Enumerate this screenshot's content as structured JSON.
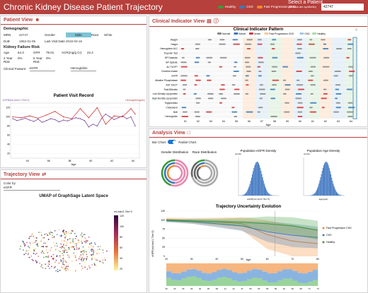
{
  "app": {
    "title": "Chronic Kidney Disease Patient Trajectory",
    "select_label": "Select a Patient",
    "select_note": "(All data are synthetic)",
    "patient_id": "42747"
  },
  "legend": [
    {
      "label": "Healthy",
      "color": "#3a9a3a"
    },
    {
      "label": "CKD",
      "color": "#3a7ab7"
    },
    {
      "label": "Fast Progression CKD",
      "color": "#f08a2c"
    }
  ],
  "patient_view": {
    "title": "Patient View",
    "demographic": "Demographic",
    "mrn_label": "MRN",
    "mrn": "42747",
    "gender_label": "Gender",
    "gender": "Male",
    "race_label": "Race",
    "race": "White",
    "dob_label": "DoB",
    "dob": "1952-01-05",
    "lastvisit_label": "Last Visit Date",
    "lastvisit": "2016-03-16",
    "risk_title": "Kidney Failure Risk",
    "age_label": "Age",
    "age": "64.3",
    "gfr_label": "GFR",
    "gfr": "79.01",
    "acr_label": "ACR(mg/g Cr)",
    "acr": "22.2",
    "risk2_label": "2 Year Risk",
    "risk2": "0%",
    "risk5_label": "5 Year Risk",
    "risk5": "0%",
    "clinical_label": "Clinical Feature:",
    "clinical_value": "eGFR",
    "second_value": "Hemoglobin",
    "chart_title": "Patient Visit Record",
    "y_left": "eGFR(mL/min/1.73m^2)",
    "y_right": "Hemoglobin(g/dL)",
    "xlabel": "Age"
  },
  "trajectory_view": {
    "title": "Trajectory View",
    "colorby": "Color by:",
    "colorby_value": "eGFR",
    "umap_title": "UMAP of GraphSage Latent Space",
    "cb_label": "mL/min/1.73m^2",
    "cb_ticks": [
      "120",
      "100",
      "80",
      "60",
      "40",
      "20"
    ]
  },
  "clinical_view": {
    "title": "Clinical Indicator View",
    "chart_title": "Clinical Indicator Pattern",
    "legend": [
      "Normal",
      "Above",
      "Under",
      "Fast Progression CKD",
      "CKD",
      "Healthy"
    ],
    "rows": [
      "Weight",
      "Height",
      "Hemoglobin A1C",
      "Troponin Test",
      "BP Diastolic",
      "BP Systolic",
      "ALT SGPT",
      "Creatine kinase",
      "eGFR",
      "Alkaline Phosphatase",
      "AST SGOT",
      "Total Bilirubin",
      "Low-Density Lipoprotein",
      "High-Density Lipoprotein",
      "Triglycerides",
      "Cholesterol",
      "BMI",
      "Hemoglobin"
    ],
    "xticks": [
      "51",
      "52",
      "53",
      "54",
      "55",
      "56",
      "57",
      "58",
      "59",
      "60",
      "61",
      "62",
      "63",
      "64"
    ],
    "xlabel": "Age"
  },
  "analysis_view": {
    "title": "Analysis View",
    "bar": "Bar Chart",
    "radial": "Radial Chart",
    "gender": "Gender Distribution",
    "race": "Race Distribution",
    "egfr_density": "Population eGFR Density",
    "egfr_x": "eGFR(mL/min/1.73m^2)",
    "age_density": "Population Age Density",
    "age_x": "age(year)",
    "density_y": "counts",
    "uncert_title": "Trajectory Uncertainty Evolution",
    "uncert_y": "eGFR(mL/min/1.73m^2)",
    "uncert_x": "Age",
    "uncert_legend": [
      "Fast Progression CKD",
      "CKD",
      "Healthy"
    ]
  },
  "chart_data": [
    {
      "type": "line",
      "title": "Patient Visit Record",
      "xlabel": "Age",
      "x_ticks": [
        "54",
        "56",
        "58",
        "60",
        "62",
        "64"
      ],
      "y_ticks": [
        "20",
        "40",
        "60",
        "80",
        "100",
        "120"
      ],
      "series": [
        {
          "name": "eGFR(mL/min/1.73m^2)",
          "x": [
            52.6,
            53,
            53.4,
            53.8,
            54.2,
            54.6,
            55,
            55.4,
            55.8,
            56.2,
            56.6,
            57,
            57.4,
            57.8,
            58.2,
            58.6,
            59,
            59.4,
            59.8,
            60.2,
            60.6,
            61,
            61.4,
            61.8,
            62.2,
            62.6,
            63,
            63.4,
            63.8,
            64.2
          ],
          "values": [
            96,
            92,
            94,
            97,
            93,
            90,
            95,
            88,
            92,
            96,
            94,
            89,
            93,
            91,
            95,
            98,
            96,
            92,
            78,
            84,
            80,
            96,
            106,
            100,
            94,
            98,
            102,
            96,
            100,
            80
          ]
        },
        {
          "name": "Hemoglobin(g/dL)",
          "x": [
            52.6,
            53.4,
            54.2,
            55,
            55.8,
            56.6,
            57.4,
            58.2,
            59,
            59.8,
            60.6,
            61.4,
            62.2,
            63,
            63.8,
            64.2
          ],
          "values": [
            100,
            98,
            102,
            97,
            104,
            112,
            100,
            96,
            118,
            98,
            120,
            84,
            102,
            100,
            118,
            106
          ]
        }
      ]
    },
    {
      "type": "line",
      "title": "Trajectory Uncertainty Evolution",
      "xlabel": "Age",
      "x": [
        20,
        30,
        40,
        50,
        60,
        70,
        80
      ],
      "y_ticks": [
        "0",
        "25",
        "50",
        "75",
        "100",
        "125"
      ],
      "series": [
        {
          "name": "Fast Progression CKD",
          "values": [
            102,
            98,
            95,
            90,
            60,
            42,
            35
          ]
        },
        {
          "name": "CKD",
          "values": [
            98,
            96,
            90,
            84,
            68,
            58,
            52
          ]
        },
        {
          "name": "Healthy",
          "values": [
            100,
            98,
            96,
            94,
            90,
            84,
            72
          ]
        }
      ]
    }
  ]
}
